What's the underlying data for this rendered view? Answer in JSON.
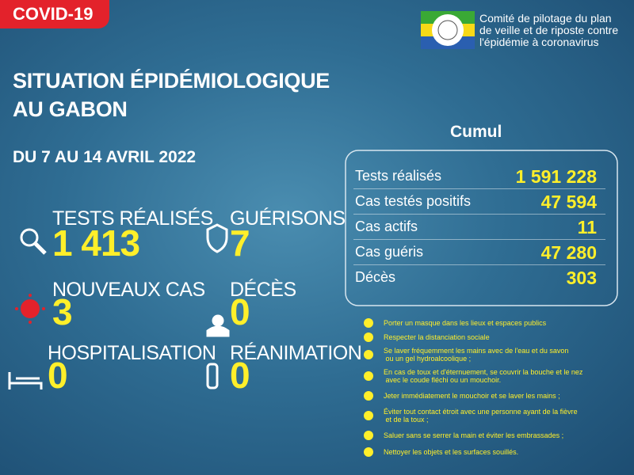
{
  "header": {
    "tag": "COVID-19",
    "org": [
      "Comité de pilotage du plan",
      "de veille et de riposte contre",
      "l'épidémie à coronavirus"
    ]
  },
  "title": [
    "SITUATION ÉPIDÉMIOLOGIQUE",
    "AU GABON"
  ],
  "period": "DU 7 AU 14 AVRIL 2022",
  "stats": [
    {
      "label": "TESTS RÉALISÉS",
      "value": "1 413"
    },
    {
      "label": "GUÉRISONS",
      "value": "7"
    },
    {
      "label": "NOUVEAUX CAS",
      "value": "3"
    },
    {
      "label": "DÉCÈS",
      "value": "0"
    },
    {
      "label": "HOSPITALISATION",
      "value": "0"
    },
    {
      "label": "RÉANIMATION",
      "value": "0"
    }
  ],
  "cumul": {
    "title": "Cumul",
    "rows": [
      {
        "label": "Tests réalisés",
        "value": "1 591 228"
      },
      {
        "label": "Cas testés positifs",
        "value": "47 594"
      },
      {
        "label": "Cas actifs",
        "value": "11"
      },
      {
        "label": "Cas guéris",
        "value": "47 280"
      },
      {
        "label": "Décès",
        "value": "303"
      }
    ]
  },
  "advice": [
    [
      "Porter un masque dans les lieux et espaces publics"
    ],
    [
      "Respecter la distanciation sociale"
    ],
    [
      "Se laver fréquemment les mains avec de l'eau et du savon",
      " ou un gel hydroalcoolique ;"
    ],
    [
      "En cas de toux et d'éternuement, se couvrir la bouche et le nez",
      " avec le coude fléchi ou un mouchoir."
    ],
    [
      "Jeter immédiatement le mouchoir et se laver les mains ;"
    ],
    [
      "Éviter tout contact étroit avec une personne ayant de la fièvre",
      " et de la toux ;"
    ],
    [
      "Saluer sans se serrer la main et éviter les embrassades ;"
    ],
    [
      "Nettoyer les objets et les surfaces souillés."
    ]
  ]
}
